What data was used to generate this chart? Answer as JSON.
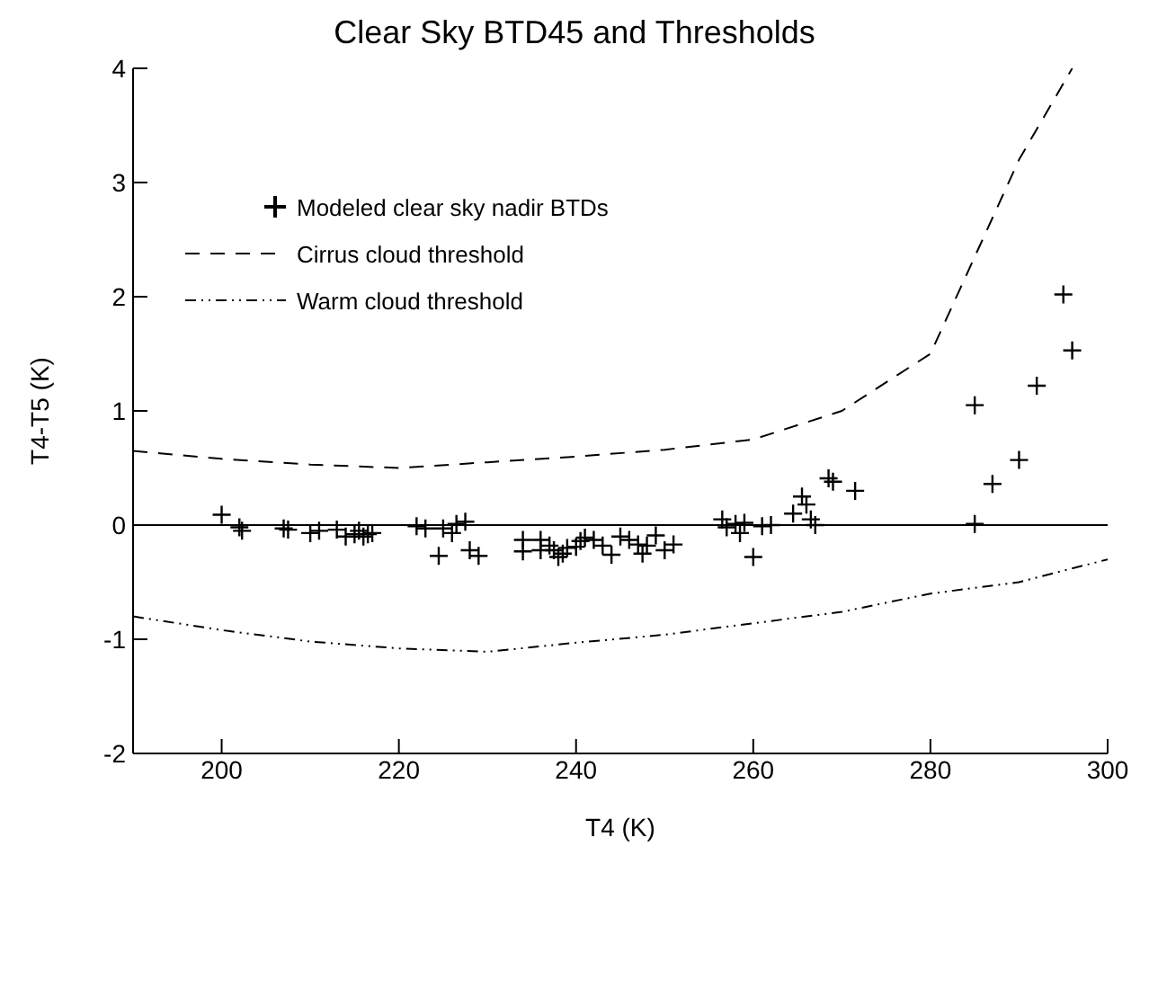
{
  "chart_data": {
    "type": "scatter",
    "title": "Clear Sky BTD45 and Thresholds",
    "xlabel": "T4 (K)",
    "ylabel": "T4-T5 (K)",
    "xlim": [
      190,
      300
    ],
    "xticks": [
      200,
      220,
      240,
      260,
      280,
      300
    ],
    "ylim": [
      -2,
      4
    ],
    "yticks": [
      -2,
      -1,
      0,
      1,
      2,
      3,
      4
    ],
    "grid": false,
    "legend": "top left",
    "ref_lines": [
      {
        "axis": "y",
        "value": 0,
        "color": "#000000",
        "line_style": "solid"
      }
    ],
    "series": [
      {
        "name": "Modeled clear sky nadir BTDs",
        "marker": "cross",
        "color": "#000000",
        "x": [
          200,
          202.3,
          202,
          207,
          207.5,
          210,
          211,
          213,
          214,
          215,
          215.5,
          216,
          216.5,
          217,
          222,
          223,
          225,
          226,
          226.5,
          227.5,
          224.5,
          228,
          229,
          234,
          234,
          236,
          236,
          237,
          237.5,
          238,
          238.5,
          239,
          240,
          240.5,
          241,
          242,
          243,
          244,
          245,
          246,
          247,
          247.5,
          248,
          249,
          250,
          251,
          256.5,
          257,
          258,
          258.5,
          259,
          260,
          261,
          262,
          264.5,
          265.5,
          266,
          266.5,
          267,
          268.5,
          269,
          271.5,
          285,
          285,
          287,
          290,
          292,
          295,
          296
        ],
        "values": [
          0.09,
          -0.05,
          -0.02,
          -0.03,
          -0.04,
          -0.07,
          -0.05,
          -0.04,
          -0.1,
          -0.08,
          -0.05,
          -0.1,
          -0.08,
          -0.07,
          -0.01,
          -0.03,
          -0.03,
          -0.07,
          0.01,
          0.03,
          -0.27,
          -0.22,
          -0.27,
          -0.13,
          -0.23,
          -0.13,
          -0.22,
          -0.18,
          -0.22,
          -0.28,
          -0.25,
          -0.2,
          -0.19,
          -0.14,
          -0.11,
          -0.13,
          -0.18,
          -0.26,
          -0.1,
          -0.13,
          -0.17,
          -0.25,
          -0.18,
          -0.09,
          -0.22,
          -0.17,
          0.05,
          -0.02,
          0.01,
          -0.07,
          0.02,
          -0.28,
          -0.01,
          0,
          0.1,
          0.25,
          0.18,
          0.05,
          0,
          0.41,
          0.38,
          0.3,
          1.05,
          0.01,
          0.36,
          0.57,
          1.22,
          2.02,
          1.53
        ]
      },
      {
        "name": "Cirrus cloud threshold",
        "type": "line",
        "line_style": "dashed",
        "marker": "none",
        "color": "#000000",
        "x": [
          190,
          200,
          210,
          220,
          230,
          240,
          250,
          260,
          270,
          280,
          290,
          296
        ],
        "values": [
          0.65,
          0.58,
          0.53,
          0.5,
          0.55,
          0.6,
          0.66,
          0.75,
          1.0,
          1.5,
          3.2,
          4.0
        ]
      },
      {
        "name": "Warm cloud threshold",
        "type": "line",
        "line_style": "dashdot",
        "marker": "none",
        "color": "#000000",
        "x": [
          190,
          200,
          210,
          220,
          230,
          240,
          250,
          260,
          270,
          280,
          290,
          300
        ],
        "values": [
          -0.8,
          -0.92,
          -1.02,
          -1.08,
          -1.11,
          -1.03,
          -0.96,
          -0.86,
          -0.76,
          -0.6,
          -0.5,
          -0.3
        ]
      }
    ]
  }
}
